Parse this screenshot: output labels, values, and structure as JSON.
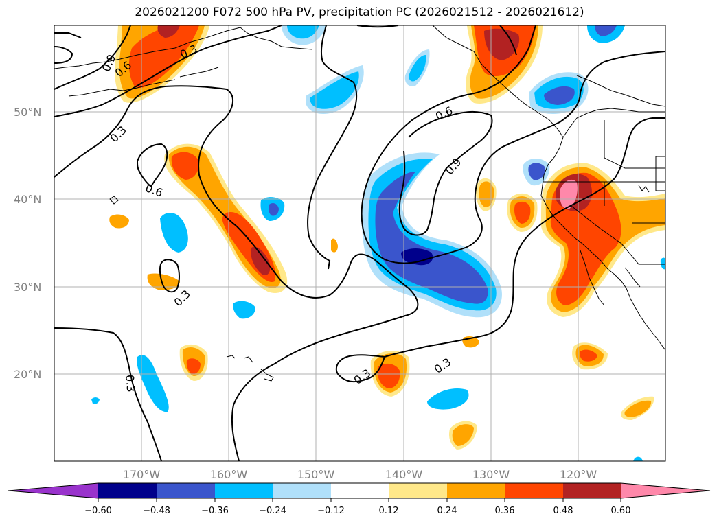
{
  "title": "2026021200 F072 500 hPa PV, precipitation PC (2026021512 - 2026021612)",
  "map": {
    "lat_labels": [
      "50°N",
      "40°N",
      "30°N",
      "20°N"
    ],
    "lon_labels": [
      "170°W",
      "160°W",
      "150°W",
      "140°W",
      "130°W",
      "120°W"
    ],
    "lat_range": [
      10,
      60
    ],
    "lon_range": [
      -180,
      -110
    ],
    "gridlines": true,
    "contour_labels": [
      "0.9",
      "0.6",
      "0.3",
      "0.3",
      "0.6",
      "0.3",
      "0.6",
      "0.9",
      "0.3",
      "0.3",
      "0.3"
    ]
  },
  "colorbar": {
    "ticks": [
      "−0.60",
      "−0.48",
      "−0.36",
      "−0.24",
      "−0.12",
      "0.12",
      "0.24",
      "0.36",
      "0.48",
      "0.60"
    ],
    "colors": {
      "under": "#9933cc",
      "bin_-0.60_-0.48": "#00008b",
      "bin_-0.48_-0.36": "#3a55cc",
      "bin_-0.36_-0.24": "#00bfff",
      "bin_-0.24_-0.12": "#b0e0fa",
      "bin_-0.12_0.12": "#ffffff",
      "bin_0.12_0.24": "#ffe88a",
      "bin_0.24_0.36": "#ffa500",
      "bin_0.36_0.48": "#ff4500",
      "bin_0.48_0.60": "#b22222",
      "over": "#ff88aa"
    }
  }
}
